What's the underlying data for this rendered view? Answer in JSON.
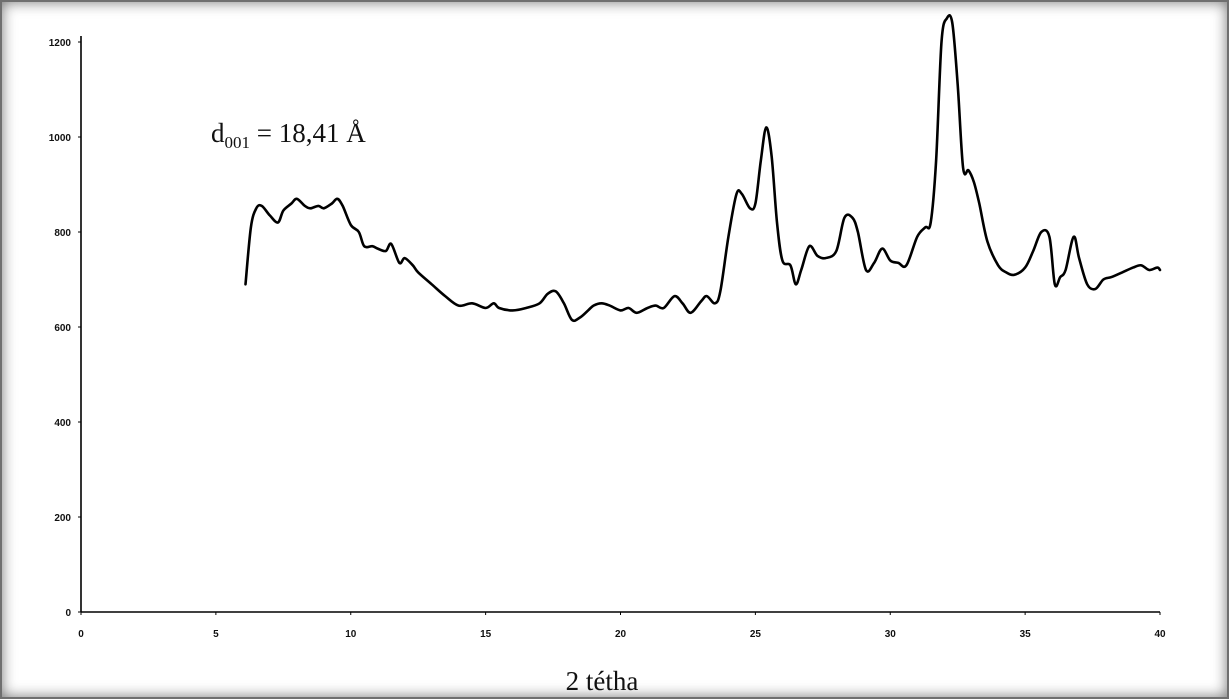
{
  "chart_data": {
    "type": "line",
    "title": "",
    "xlabel": "2 tétha",
    "ylabel": "",
    "xlim": [
      0,
      40
    ],
    "ylim": [
      0,
      1200
    ],
    "grid": false,
    "line_color": "#000000",
    "x_ticks": [
      "0",
      "5",
      "10",
      "15",
      "20",
      "25",
      "30",
      "35",
      "40"
    ],
    "y_ticks": [
      "0",
      "200",
      "400",
      "600",
      "800",
      "1000",
      "1200"
    ],
    "annotation": {
      "main": "d",
      "sub": "001",
      "rest": " = 18,41 Å"
    },
    "series": [
      {
        "x": [
          6.1,
          6.3,
          6.5,
          6.7,
          7.0,
          7.3,
          7.5,
          7.8,
          8.0,
          8.3,
          8.5,
          8.8,
          9.0,
          9.3,
          9.5,
          9.7,
          10.0,
          10.3,
          10.5,
          10.8,
          11.0,
          11.3,
          11.5,
          11.8,
          12.0,
          12.3,
          12.5,
          13.0,
          13.5,
          14.0,
          14.5,
          15.0,
          15.3,
          15.5,
          16.0,
          16.5,
          17.0,
          17.3,
          17.6,
          17.9,
          18.2,
          18.5,
          18.8,
          19.0,
          19.3,
          19.6,
          20.0,
          20.3,
          20.6,
          21.0,
          21.3,
          21.6,
          22.0,
          22.3,
          22.6,
          23.0,
          23.2,
          23.5,
          23.7,
          24.0,
          24.3,
          24.5,
          24.8,
          25.0,
          25.2,
          25.4,
          25.6,
          25.8,
          26.0,
          26.3,
          26.5,
          26.7,
          27.0,
          27.3,
          27.6,
          28.0,
          28.3,
          28.6,
          28.8,
          29.1,
          29.4,
          29.7,
          30.0,
          30.3,
          30.6,
          31.0,
          31.3,
          31.5,
          31.7,
          31.9,
          32.1,
          32.3,
          32.5,
          32.7,
          32.9,
          33.1,
          33.3,
          33.6,
          34.0,
          34.3,
          34.6,
          35.0,
          35.3,
          35.6,
          35.9,
          36.1,
          36.3,
          36.5,
          36.8,
          37.0,
          37.3,
          37.6,
          37.9,
          38.2,
          38.6,
          39.0,
          39.3,
          39.6,
          39.9,
          40.0
        ],
        "y": [
          690,
          810,
          850,
          855,
          835,
          820,
          845,
          860,
          870,
          855,
          850,
          855,
          850,
          860,
          870,
          855,
          815,
          800,
          770,
          770,
          765,
          760,
          775,
          735,
          745,
          730,
          715,
          690,
          665,
          645,
          650,
          640,
          650,
          640,
          635,
          640,
          650,
          670,
          675,
          650,
          615,
          620,
          635,
          645,
          650,
          645,
          635,
          640,
          630,
          640,
          645,
          640,
          665,
          650,
          630,
          655,
          665,
          650,
          675,
          790,
          880,
          880,
          850,
          860,
          950,
          1020,
          960,
          820,
          740,
          730,
          690,
          720,
          770,
          750,
          745,
          760,
          830,
          830,
          800,
          720,
          735,
          765,
          740,
          735,
          730,
          790,
          810,
          820,
          950,
          1200,
          1250,
          1240,
          1110,
          935,
          930,
          905,
          860,
          780,
          730,
          715,
          710,
          725,
          760,
          800,
          790,
          690,
          705,
          720,
          790,
          745,
          690,
          680,
          700,
          705,
          715,
          725,
          730,
          720,
          725,
          720
        ]
      }
    ]
  }
}
